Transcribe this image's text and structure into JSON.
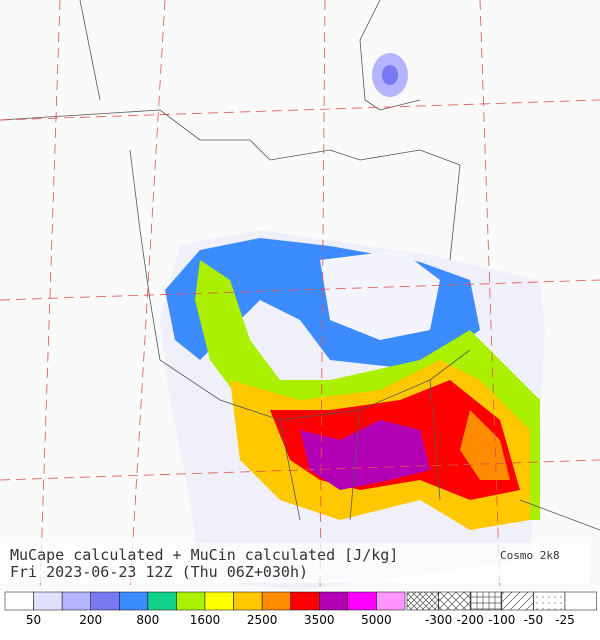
{
  "map": {
    "title": "MuCape calculated + MuCin calculated [J/kg]",
    "subtitle": "Fri 2023-06-23 12Z (Thu 06Z+030h)",
    "model": "Cosmo 2k8"
  },
  "legend": {
    "cape_colors": [
      "#ffffff",
      "#e1e1ff",
      "#b4b4ff",
      "#7878f0",
      "#3c8cff",
      "#14d28c",
      "#aaf000",
      "#ffff00",
      "#ffc800",
      "#ff8c00",
      "#ff0000",
      "#b400b4",
      "#ff00ff",
      "#ff96ff"
    ],
    "cape_labels": [
      "50",
      "200",
      "800",
      "1600",
      "2500",
      "3500",
      "5000"
    ],
    "cin_labels": [
      "-300",
      "-200",
      "-100",
      "-50",
      "-25"
    ]
  }
}
